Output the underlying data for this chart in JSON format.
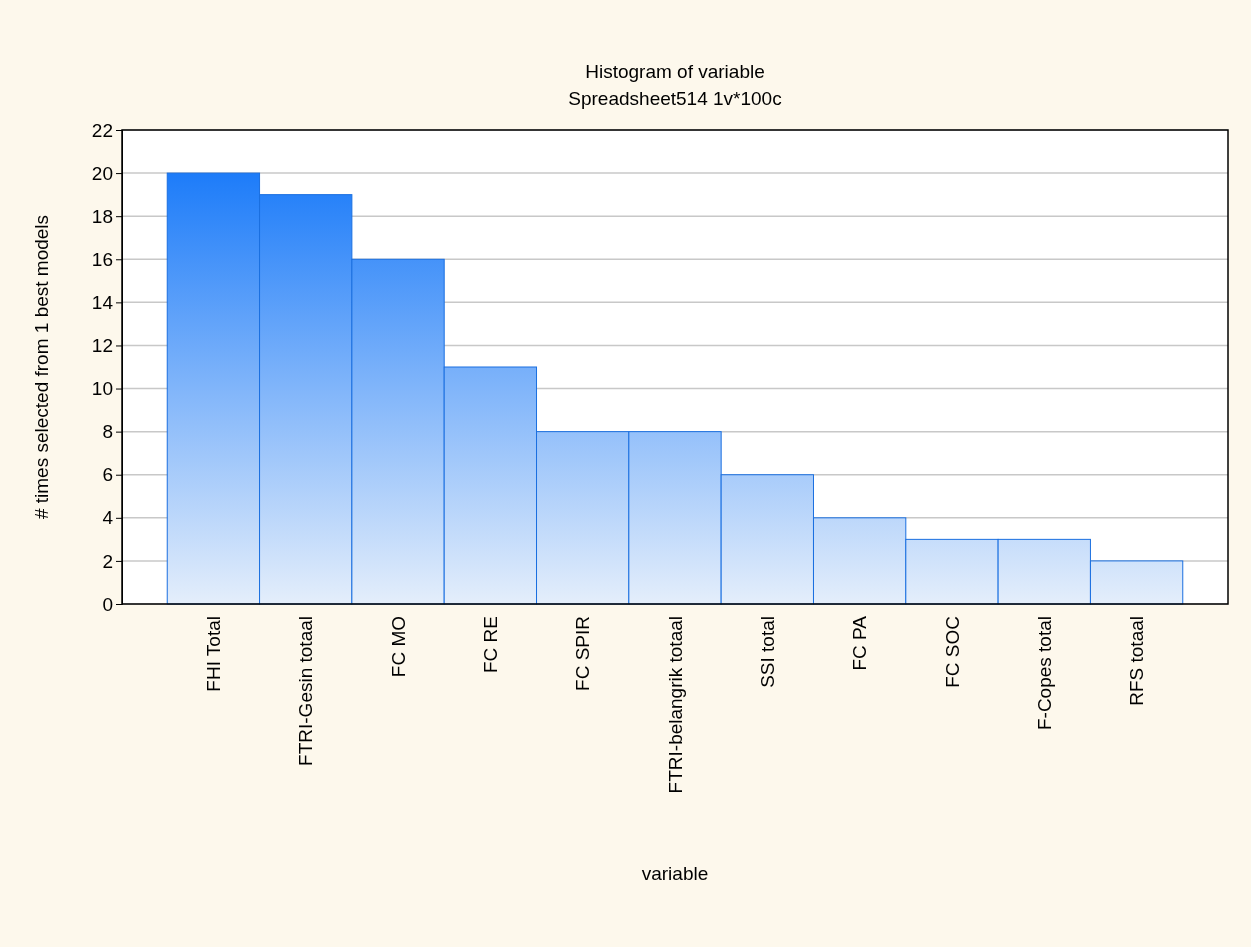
{
  "chart_data": {
    "type": "bar",
    "title": "Histogram of variable",
    "subtitle": "Spreadsheet514 1v*100c",
    "xlabel": "variable",
    "ylabel": "# times selected from 1 best models",
    "categories": [
      "FHI Total",
      "FTRI-Gesin totaal",
      "FC MO",
      "FC RE",
      "FC SPIR",
      "FTRI-belangrik totaal",
      "SSI total",
      "FC PA",
      "FC SOC",
      "F-Copes total",
      "RFS totaal"
    ],
    "values": [
      20,
      19,
      16,
      11,
      8,
      8,
      6,
      4,
      3,
      3,
      2
    ],
    "color": "#1a6fe0",
    "ylim": [
      0,
      22
    ],
    "yticks": [
      0,
      2,
      4,
      6,
      8,
      10,
      12,
      14,
      16,
      18,
      20,
      22
    ],
    "grid": "y"
  }
}
